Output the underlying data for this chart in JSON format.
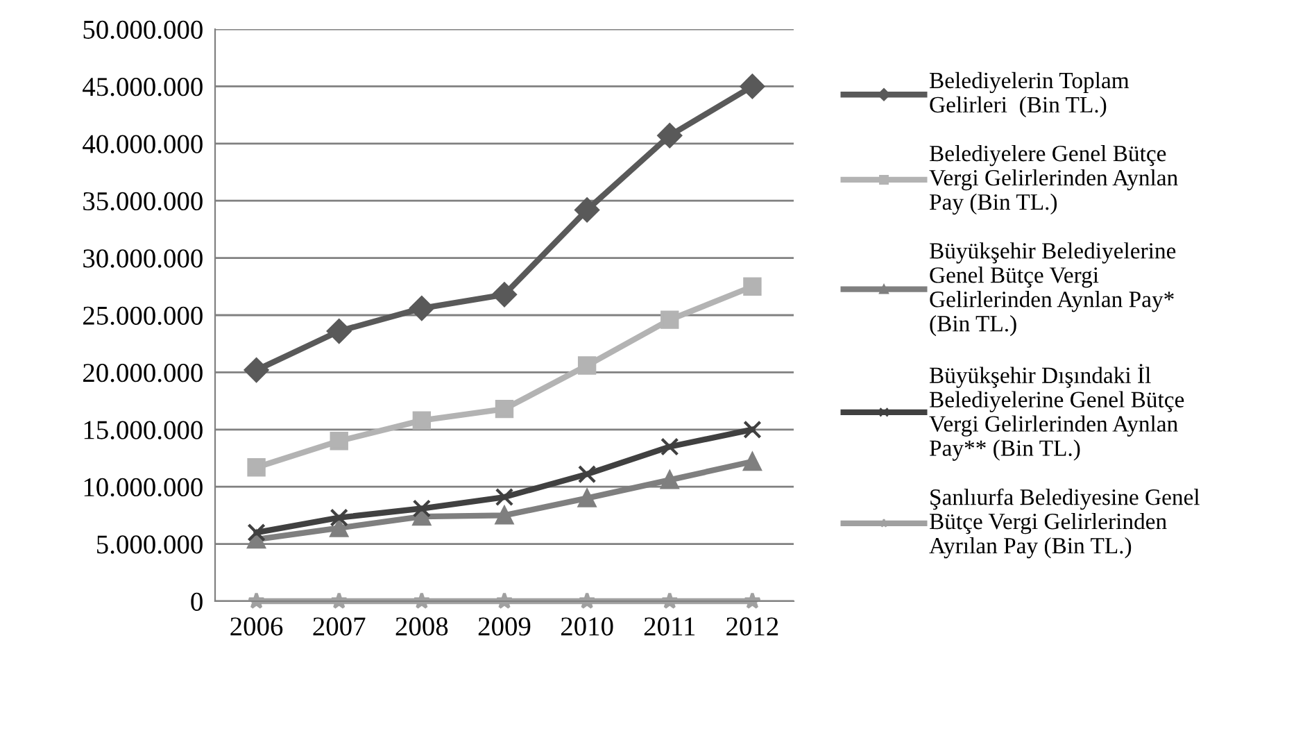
{
  "chart_data": {
    "type": "line",
    "categories": [
      "2006",
      "2007",
      "2008",
      "2009",
      "2010",
      "2011",
      "2012"
    ],
    "series": [
      {
        "name": "Belediyelerin Toplam\nGelirleri  (Bin TL.)",
        "color": "#595959",
        "marker": "diamond",
        "values": [
          20200000,
          23600000,
          25600000,
          26800000,
          34200000,
          40700000,
          45000000
        ]
      },
      {
        "name": "Belediyelere Genel Bütçe\nVergi Gelirlerinden Aynlan\nPay (Bin TL.)",
        "color": "#b3b3b3",
        "marker": "square",
        "values": [
          11700000,
          14000000,
          15800000,
          16800000,
          20600000,
          24600000,
          27500000
        ]
      },
      {
        "name": "Büyükşehir Belediyelerine\nGenel Bütçe Vergi\nGelirlerinden Aynlan Pay*\n(Bin TL.)",
        "color": "#7f7f7f",
        "marker": "triangle",
        "values": [
          5400000,
          6400000,
          7400000,
          7500000,
          9000000,
          10600000,
          12200000
        ]
      },
      {
        "name": "Büyükşehir Dışındaki İl\nBelediyelerine Genel Bütçe\nVergi Gelirlerinden Aynlan\nPay** (Bin TL.)",
        "color": "#404040",
        "marker": "cross",
        "values": [
          6000000,
          7300000,
          8100000,
          9100000,
          11100000,
          13500000,
          15000000
        ]
      },
      {
        "name": "Şanlıurfa Belediyesine Genel\nBütçe Vergi Gelirlerinden\nAyrılan Pay (Bin TL.)",
        "color": "#a0a0a0",
        "marker": "star",
        "values": [
          0,
          0,
          0,
          0,
          0,
          0,
          0
        ]
      }
    ],
    "ylim": [
      0,
      50000000
    ],
    "yticks": [
      0,
      {
        "value": 5000000,
        "label": "5.000.000"
      },
      {
        "value": 10000000,
        "label": "10.000.000"
      },
      {
        "value": 15000000,
        "label": "15.000.000"
      },
      {
        "value": 20000000,
        "label": "20.000.000"
      },
      {
        "value": 25000000,
        "label": "25.000.000"
      },
      {
        "value": 30000000,
        "label": "30.000.000"
      },
      {
        "value": 35000000,
        "label": "35.000.000"
      },
      {
        "value": 40000000,
        "label": "40.000.000"
      },
      {
        "value": 45000000,
        "label": "45.000.000"
      },
      {
        "value": 50000000,
        "label": "50.000.000"
      }
    ],
    "grid": "y",
    "legend": "right",
    "line_style": "solid"
  }
}
